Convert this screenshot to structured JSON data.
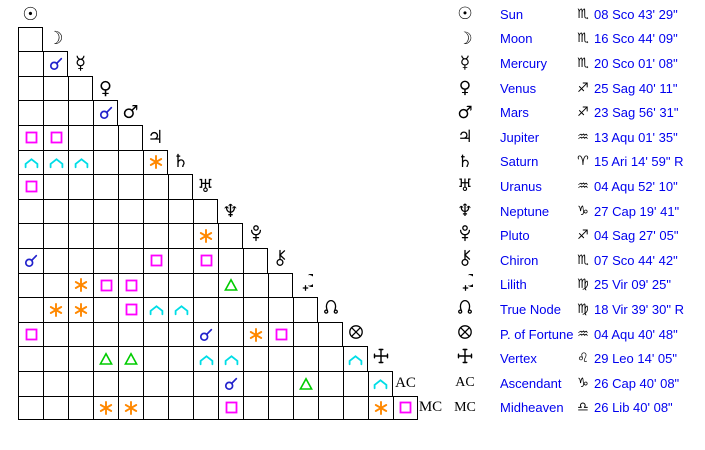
{
  "colors": {
    "background": "#ffffff",
    "grid_line": "#000000",
    "glyphs": "#000000",
    "table_text": "#0000ee",
    "conjunction": "#2222cc",
    "square": "#ff00ff",
    "sextile": "#ff8800",
    "trine": "#00cc00",
    "quincunx": "#00dde6"
  },
  "planets": [
    {
      "id": "sun",
      "name": "Sun",
      "glyph": {
        "type": "char",
        "char": "☉",
        "icon": "sun-icon"
      },
      "sign": "Scorpio",
      "sign_char": "♏",
      "position": "08 Sco 43' 29\""
    },
    {
      "id": "moon",
      "name": "Moon",
      "glyph": {
        "type": "char",
        "char": "☽",
        "icon": "moon-icon"
      },
      "sign": "Scorpio",
      "sign_char": "♏",
      "position": "16 Sco 44' 09\""
    },
    {
      "id": "mercury",
      "name": "Mercury",
      "glyph": {
        "type": "char",
        "char": "☿",
        "icon": "mercury-icon"
      },
      "sign": "Scorpio",
      "sign_char": "♏",
      "position": "20 Sco 01' 08\""
    },
    {
      "id": "venus",
      "name": "Venus",
      "glyph": {
        "type": "char",
        "char": "♀",
        "icon": "venus-icon"
      },
      "sign": "Sagittarius",
      "sign_char": "♐",
      "position": "25 Sag 40' 11\""
    },
    {
      "id": "mars",
      "name": "Mars",
      "glyph": {
        "type": "char",
        "char": "♂",
        "icon": "mars-icon"
      },
      "sign": "Sagittarius",
      "sign_char": "♐",
      "position": "23 Sag 56' 31\""
    },
    {
      "id": "jupiter",
      "name": "Jupiter",
      "glyph": {
        "type": "char",
        "char": "♃",
        "icon": "jupiter-icon"
      },
      "sign": "Aquarius",
      "sign_char": "♒",
      "position": "13 Aqu 01' 35\""
    },
    {
      "id": "saturn",
      "name": "Saturn",
      "glyph": {
        "type": "char",
        "char": "♄",
        "icon": "saturn-icon"
      },
      "sign": "Aries",
      "sign_char": "♈",
      "position": "15 Ari 14' 59\" R"
    },
    {
      "id": "uranus",
      "name": "Uranus",
      "glyph": {
        "type": "char",
        "char": "♅",
        "icon": "uranus-icon"
      },
      "sign": "Aquarius",
      "sign_char": "♒",
      "position": "04 Aqu 52' 10\""
    },
    {
      "id": "neptune",
      "name": "Neptune",
      "glyph": {
        "type": "char",
        "char": "♆",
        "icon": "neptune-icon"
      },
      "sign": "Capricorn",
      "sign_char": "♑",
      "position": "27 Cap 19' 41\""
    },
    {
      "id": "pluto",
      "name": "Pluto",
      "glyph": {
        "type": "svg",
        "icon": "pluto-icon"
      },
      "sign": "Sagittarius",
      "sign_char": "♐",
      "position": "04 Sag 27' 05\""
    },
    {
      "id": "chiron",
      "name": "Chiron",
      "glyph": {
        "type": "svg",
        "icon": "chiron-icon"
      },
      "sign": "Scorpio",
      "sign_char": "♏",
      "position": "07 Sco 44' 42\""
    },
    {
      "id": "lilith",
      "name": "Lilith",
      "glyph": {
        "type": "svg",
        "icon": "lilith-icon"
      },
      "sign": "Virgo",
      "sign_char": "♍",
      "position": "25 Vir 09' 25\""
    },
    {
      "id": "true_node",
      "name": "True Node",
      "glyph": {
        "type": "svg",
        "icon": "true-node-icon"
      },
      "sign": "Virgo",
      "sign_char": "♍",
      "position": "18 Vir 39' 30\" R"
    },
    {
      "id": "p_of_fortune",
      "name": "P. of Fortune",
      "glyph": {
        "type": "svg",
        "icon": "part-of-fortune-icon"
      },
      "sign": "Aquarius",
      "sign_char": "♒",
      "position": "04 Aqu 40' 48\""
    },
    {
      "id": "vertex",
      "name": "Vertex",
      "glyph": {
        "type": "svg",
        "icon": "vertex-icon"
      },
      "sign": "Leo",
      "sign_char": "♌",
      "position": "29 Leo 14' 05\""
    },
    {
      "id": "ascendant",
      "name": "Ascendant",
      "glyph": {
        "type": "text",
        "text": "AC",
        "icon": "ascendant-label"
      },
      "sign": "Capricorn",
      "sign_char": "♑",
      "position": "26 Cap 40' 08\""
    },
    {
      "id": "midheaven",
      "name": "Midheaven",
      "glyph": {
        "type": "text",
        "text": "MC",
        "icon": "midheaven-label"
      },
      "sign": "Libra",
      "sign_char": "♎",
      "position": "26 Lib 40' 08\""
    }
  ],
  "aspects": [
    {
      "p1": "mercury",
      "p2": "moon",
      "type": "conjunction"
    },
    {
      "p1": "mars",
      "p2": "venus",
      "type": "conjunction"
    },
    {
      "p1": "jupiter",
      "p2": "sun",
      "type": "square"
    },
    {
      "p1": "jupiter",
      "p2": "moon",
      "type": "square"
    },
    {
      "p1": "saturn",
      "p2": "sun",
      "type": "quincunx"
    },
    {
      "p1": "saturn",
      "p2": "moon",
      "type": "quincunx"
    },
    {
      "p1": "saturn",
      "p2": "mercury",
      "type": "quincunx"
    },
    {
      "p1": "saturn",
      "p2": "jupiter",
      "type": "sextile"
    },
    {
      "p1": "uranus",
      "p2": "sun",
      "type": "square"
    },
    {
      "p1": "pluto",
      "p2": "uranus",
      "type": "sextile"
    },
    {
      "p1": "chiron",
      "p2": "sun",
      "type": "conjunction"
    },
    {
      "p1": "chiron",
      "p2": "jupiter",
      "type": "square"
    },
    {
      "p1": "chiron",
      "p2": "uranus",
      "type": "square"
    },
    {
      "p1": "lilith",
      "p2": "mercury",
      "type": "sextile"
    },
    {
      "p1": "lilith",
      "p2": "venus",
      "type": "square"
    },
    {
      "p1": "lilith",
      "p2": "mars",
      "type": "square"
    },
    {
      "p1": "lilith",
      "p2": "neptune",
      "type": "trine"
    },
    {
      "p1": "true_node",
      "p2": "moon",
      "type": "sextile"
    },
    {
      "p1": "true_node",
      "p2": "mercury",
      "type": "sextile"
    },
    {
      "p1": "true_node",
      "p2": "mars",
      "type": "square"
    },
    {
      "p1": "true_node",
      "p2": "jupiter",
      "type": "quincunx"
    },
    {
      "p1": "true_node",
      "p2": "saturn",
      "type": "quincunx"
    },
    {
      "p1": "p_of_fortune",
      "p2": "sun",
      "type": "square"
    },
    {
      "p1": "p_of_fortune",
      "p2": "uranus",
      "type": "conjunction"
    },
    {
      "p1": "p_of_fortune",
      "p2": "pluto",
      "type": "sextile"
    },
    {
      "p1": "p_of_fortune",
      "p2": "chiron",
      "type": "square"
    },
    {
      "p1": "vertex",
      "p2": "venus",
      "type": "trine"
    },
    {
      "p1": "vertex",
      "p2": "mars",
      "type": "trine"
    },
    {
      "p1": "vertex",
      "p2": "uranus",
      "type": "quincunx"
    },
    {
      "p1": "vertex",
      "p2": "neptune",
      "type": "quincunx"
    },
    {
      "p1": "vertex",
      "p2": "p_of_fortune",
      "type": "quincunx"
    },
    {
      "p1": "ascendant",
      "p2": "neptune",
      "type": "conjunction"
    },
    {
      "p1": "ascendant",
      "p2": "lilith",
      "type": "trine"
    },
    {
      "p1": "ascendant",
      "p2": "vertex",
      "type": "quincunx"
    },
    {
      "p1": "midheaven",
      "p2": "venus",
      "type": "sextile"
    },
    {
      "p1": "midheaven",
      "p2": "mars",
      "type": "sextile"
    },
    {
      "p1": "midheaven",
      "p2": "neptune",
      "type": "square"
    },
    {
      "p1": "midheaven",
      "p2": "vertex",
      "type": "sextile"
    },
    {
      "p1": "midheaven",
      "p2": "ascendant",
      "type": "square"
    }
  ]
}
